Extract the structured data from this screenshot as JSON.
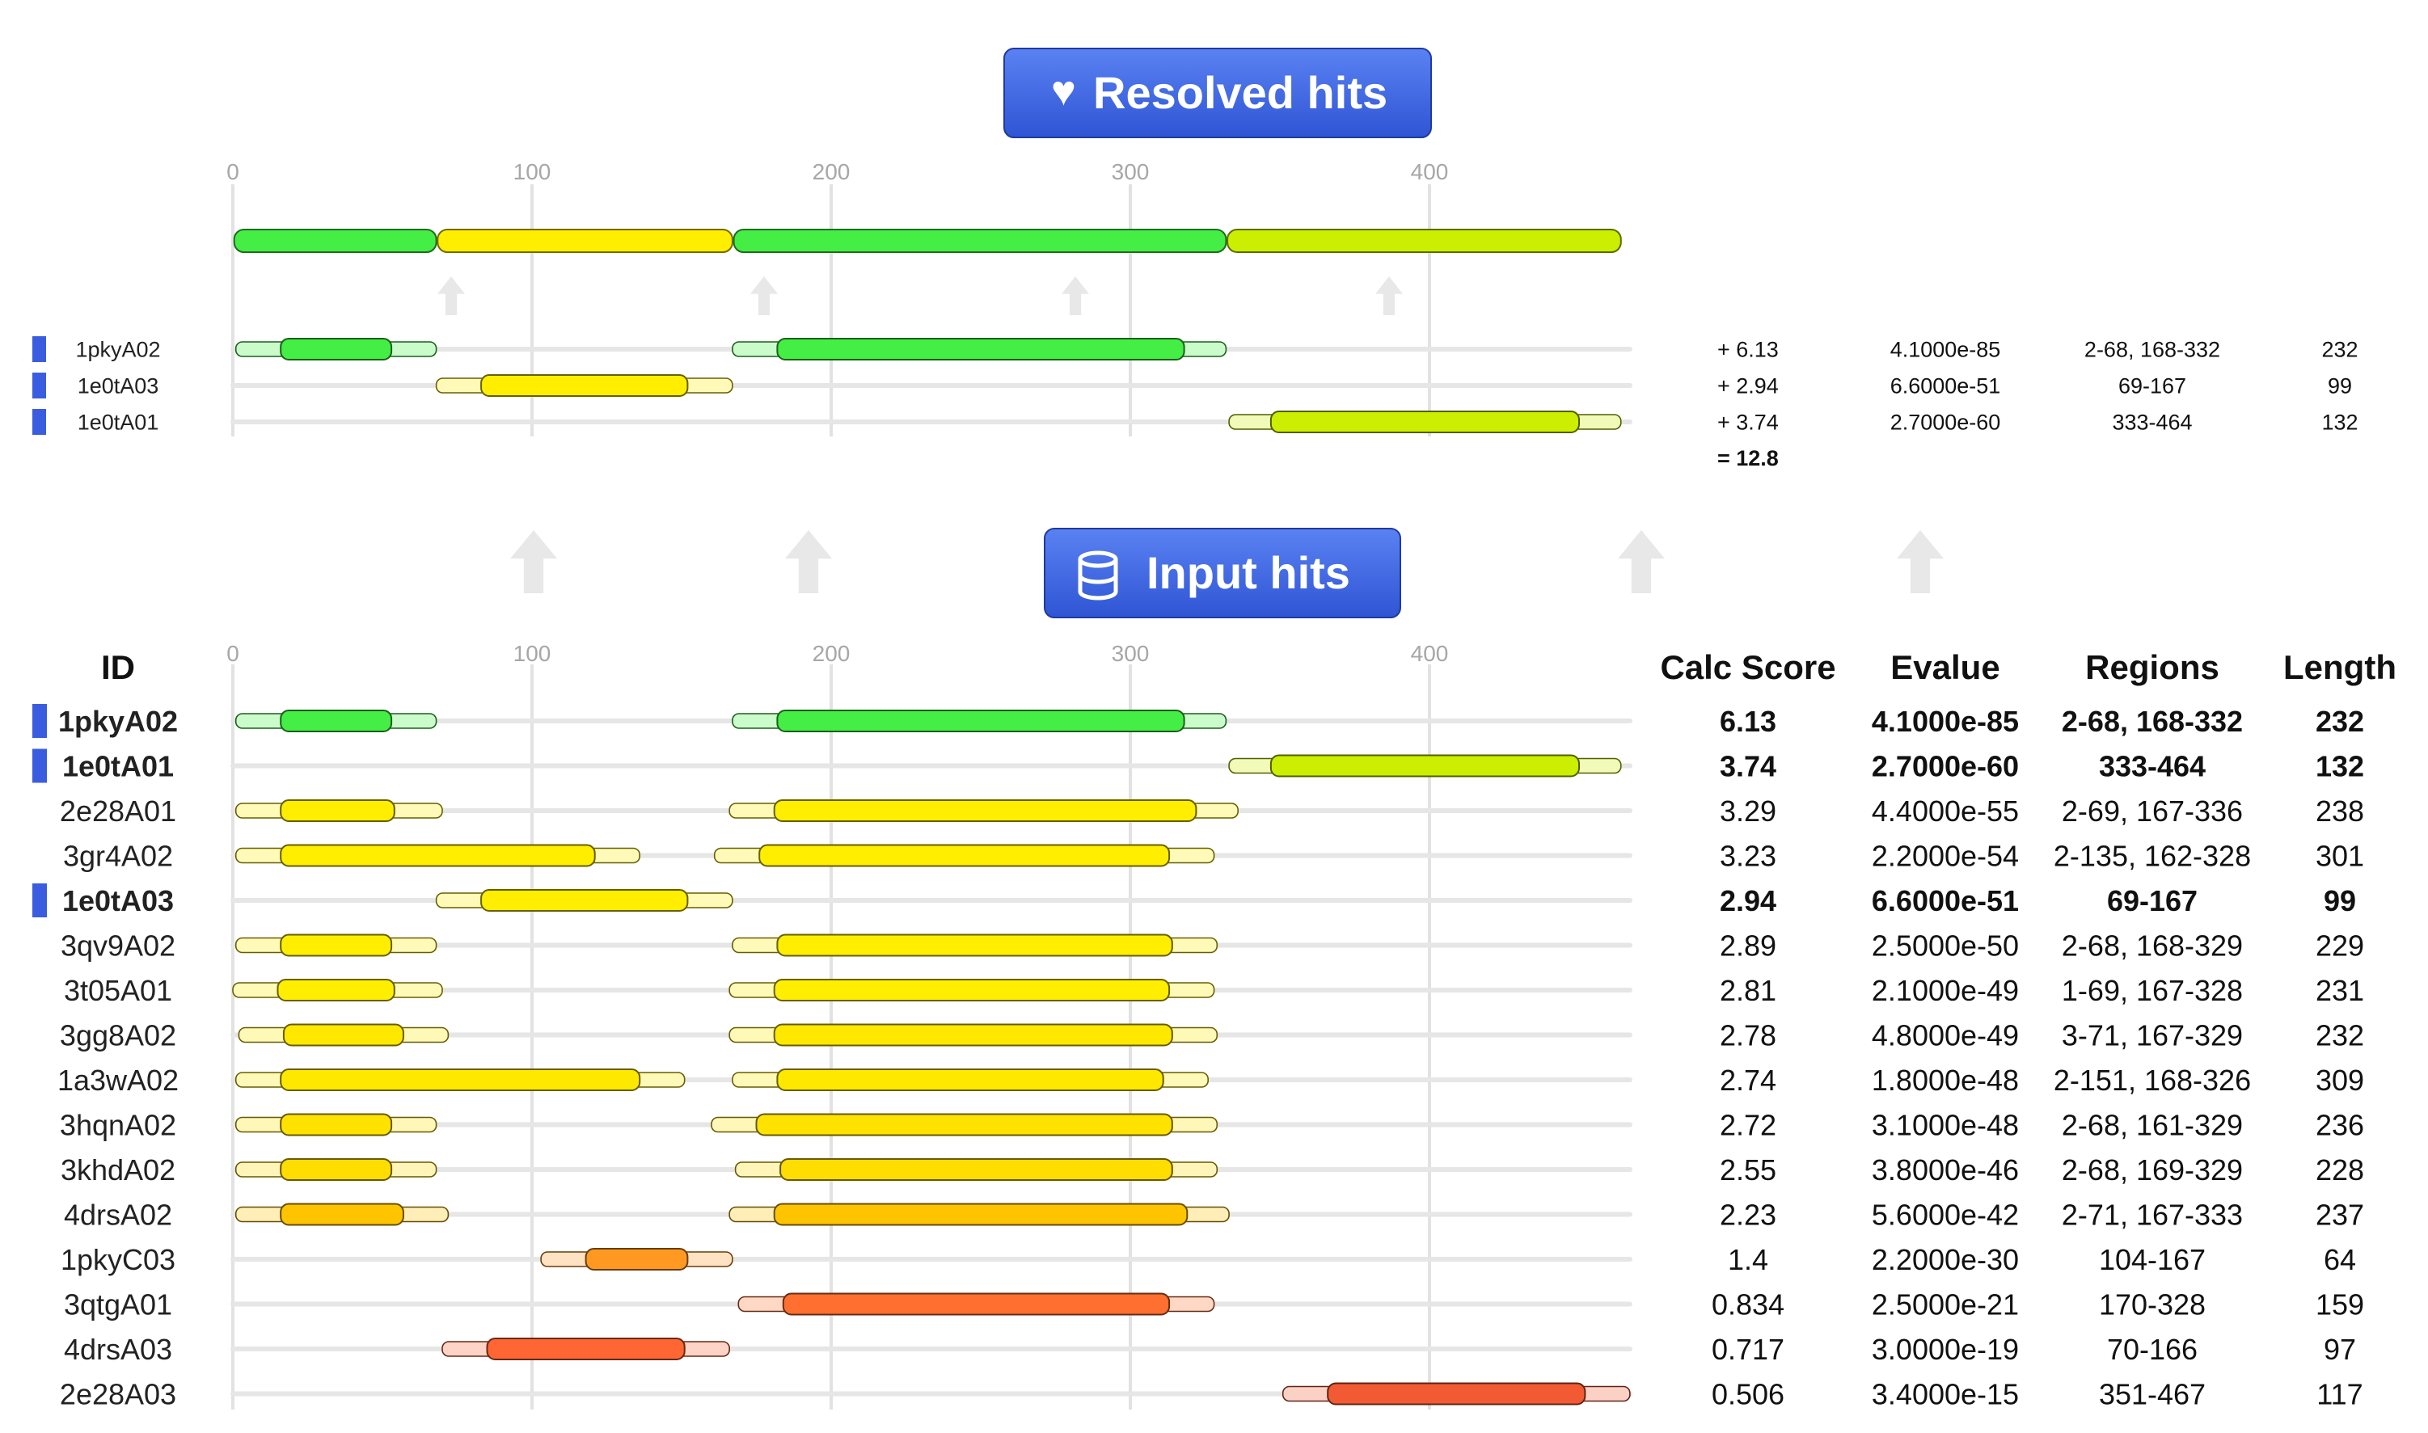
{
  "resolved_section": {
    "button_label": "Resolved hits",
    "button_icon": "heart-icon",
    "axis_ticks": [
      "0",
      "100",
      "200",
      "300",
      "400"
    ],
    "merged_segments": [
      {
        "start": 1,
        "end": 68,
        "color": "#44ee44"
      },
      {
        "start": 69,
        "end": 167,
        "color": "#ffee00"
      },
      {
        "start": 168,
        "end": 332,
        "color": "#44ee44"
      },
      {
        "start": 333,
        "end": 464,
        "color": "#ccee00"
      }
    ],
    "hits": [
      {
        "id": "1pkyA02",
        "score": "+ 6.13",
        "evalue": "4.1000e-85",
        "regions": "2-68, 168-332",
        "length": "232",
        "color": "#44ee44",
        "segments": [
          {
            "outer": [
              1,
              68
            ],
            "inner": [
              16,
              53
            ]
          },
          {
            "outer": [
              167,
              332
            ],
            "inner": [
              182,
              318
            ]
          }
        ]
      },
      {
        "id": "1e0tA03",
        "score": "+ 2.94",
        "evalue": "6.6000e-51",
        "regions": "69-167",
        "length": "99",
        "color": "#ffee00",
        "segments": [
          {
            "outer": [
              68,
              167
            ],
            "inner": [
              83,
              152
            ]
          }
        ]
      },
      {
        "id": "1e0tA01",
        "score": "+ 3.74",
        "evalue": "2.7000e-60",
        "regions": "333-464",
        "length": "132",
        "color": "#ccee00",
        "segments": [
          {
            "outer": [
              333,
              464
            ],
            "inner": [
              347,
              450
            ]
          }
        ]
      }
    ],
    "total_score": "= 12.8"
  },
  "input_section": {
    "button_label": "Input hits",
    "button_icon": "database-icon",
    "axis_ticks": [
      "0",
      "100",
      "200",
      "300",
      "400"
    ],
    "headers": {
      "id": "ID",
      "score": "Calc Score",
      "evalue": "Evalue",
      "regions": "Regions",
      "length": "Length"
    },
    "hits": [
      {
        "id": "1pkyA02",
        "score": "6.13",
        "evalue": "4.1000e-85",
        "regions": "2-68, 168-332",
        "length": "232",
        "selected": true,
        "color": "#44ee44",
        "segments": [
          {
            "outer": [
              1,
              68
            ],
            "inner": [
              16,
              53
            ]
          },
          {
            "outer": [
              167,
              332
            ],
            "inner": [
              182,
              318
            ]
          }
        ]
      },
      {
        "id": "1e0tA01",
        "score": "3.74",
        "evalue": "2.7000e-60",
        "regions": "333-464",
        "length": "132",
        "selected": true,
        "color": "#ccee00",
        "segments": [
          {
            "outer": [
              333,
              464
            ],
            "inner": [
              347,
              450
            ]
          }
        ]
      },
      {
        "id": "2e28A01",
        "score": "3.29",
        "evalue": "4.4000e-55",
        "regions": "2-69, 167-336",
        "length": "238",
        "selected": false,
        "color": "#ffee00",
        "segments": [
          {
            "outer": [
              1,
              70
            ],
            "inner": [
              16,
              54
            ]
          },
          {
            "outer": [
              166,
              336
            ],
            "inner": [
              181,
              322
            ]
          }
        ]
      },
      {
        "id": "3gr4A02",
        "score": "3.23",
        "evalue": "2.2000e-54",
        "regions": "2-135, 162-328",
        "length": "301",
        "selected": false,
        "color": "#ffee00",
        "segments": [
          {
            "outer": [
              1,
              136
            ],
            "inner": [
              16,
              121
            ]
          },
          {
            "outer": [
              161,
              328
            ],
            "inner": [
              176,
              313
            ]
          }
        ]
      },
      {
        "id": "1e0tA03",
        "score": "2.94",
        "evalue": "6.6000e-51",
        "regions": "69-167",
        "length": "99",
        "selected": true,
        "color": "#ffee00",
        "segments": [
          {
            "outer": [
              68,
              167
            ],
            "inner": [
              83,
              152
            ]
          }
        ]
      },
      {
        "id": "3qv9A02",
        "score": "2.89",
        "evalue": "2.5000e-50",
        "regions": "2-68, 168-329",
        "length": "229",
        "selected": false,
        "color": "#ffee00",
        "segments": [
          {
            "outer": [
              1,
              68
            ],
            "inner": [
              16,
              53
            ]
          },
          {
            "outer": [
              167,
              329
            ],
            "inner": [
              182,
              314
            ]
          }
        ]
      },
      {
        "id": "3t05A01",
        "score": "2.81",
        "evalue": "2.1000e-49",
        "regions": "1-69, 167-328",
        "length": "231",
        "selected": false,
        "color": "#ffee00",
        "segments": [
          {
            "outer": [
              0,
              70
            ],
            "inner": [
              15,
              54
            ]
          },
          {
            "outer": [
              166,
              328
            ],
            "inner": [
              181,
              313
            ]
          }
        ]
      },
      {
        "id": "3gg8A02",
        "score": "2.78",
        "evalue": "4.8000e-49",
        "regions": "3-71, 167-329",
        "length": "232",
        "selected": false,
        "color": "#ffe800",
        "segments": [
          {
            "outer": [
              2,
              72
            ],
            "inner": [
              17,
              57
            ]
          },
          {
            "outer": [
              166,
              329
            ],
            "inner": [
              181,
              314
            ]
          }
        ]
      },
      {
        "id": "1a3wA02",
        "score": "2.74",
        "evalue": "1.8000e-48",
        "regions": "2-151, 168-326",
        "length": "309",
        "selected": false,
        "color": "#ffe800",
        "segments": [
          {
            "outer": [
              1,
              151
            ],
            "inner": [
              16,
              136
            ]
          },
          {
            "outer": [
              167,
              326
            ],
            "inner": [
              182,
              311
            ]
          }
        ]
      },
      {
        "id": "3hqnA02",
        "score": "2.72",
        "evalue": "3.1000e-48",
        "regions": "2-68, 161-329",
        "length": "236",
        "selected": false,
        "color": "#ffe200",
        "segments": [
          {
            "outer": [
              1,
              68
            ],
            "inner": [
              16,
              53
            ]
          },
          {
            "outer": [
              160,
              329
            ],
            "inner": [
              175,
              314
            ]
          }
        ]
      },
      {
        "id": "3khdA02",
        "score": "2.55",
        "evalue": "3.8000e-46",
        "regions": "2-68, 169-329",
        "length": "228",
        "selected": false,
        "color": "#ffdd00",
        "segments": [
          {
            "outer": [
              1,
              68
            ],
            "inner": [
              16,
              53
            ]
          },
          {
            "outer": [
              168,
              329
            ],
            "inner": [
              183,
              314
            ]
          }
        ]
      },
      {
        "id": "4drsA02",
        "score": "2.23",
        "evalue": "5.6000e-42",
        "regions": "2-71, 167-333",
        "length": "237",
        "selected": false,
        "color": "#ffc400",
        "segments": [
          {
            "outer": [
              1,
              72
            ],
            "inner": [
              16,
              57
            ]
          },
          {
            "outer": [
              166,
              333
            ],
            "inner": [
              181,
              319
            ]
          }
        ]
      },
      {
        "id": "1pkyC03",
        "score": "1.4",
        "evalue": "2.2000e-30",
        "regions": "104-167",
        "length": "64",
        "selected": false,
        "color": "#ff9922",
        "segments": [
          {
            "outer": [
              103,
              167
            ],
            "inner": [
              118,
              152
            ]
          }
        ]
      },
      {
        "id": "3qtgA01",
        "score": "0.834",
        "evalue": "2.5000e-21",
        "regions": "170-328",
        "length": "159",
        "selected": false,
        "color": "#ff6f30",
        "segments": [
          {
            "outer": [
              169,
              328
            ],
            "inner": [
              184,
              313
            ]
          }
        ]
      },
      {
        "id": "4drsA03",
        "score": "0.717",
        "evalue": "3.0000e-19",
        "regions": "70-166",
        "length": "97",
        "selected": false,
        "color": "#ff6633",
        "segments": [
          {
            "outer": [
              70,
              166
            ],
            "inner": [
              85,
              151
            ]
          }
        ]
      },
      {
        "id": "2e28A03",
        "score": "0.506",
        "evalue": "3.4000e-15",
        "regions": "351-467",
        "length": "117",
        "selected": false,
        "color": "#f25a33",
        "segments": [
          {
            "outer": [
              351,
              467
            ],
            "inner": [
              366,
              452
            ]
          }
        ]
      }
    ]
  },
  "colors": {
    "button_fill": "#3d64e0",
    "button_border": "#1f3aa0",
    "selected_marker": "#3a5de0",
    "track": "#e6e6e6",
    "grid": "#e2e2e2",
    "arrow": "#e8e8e8"
  }
}
